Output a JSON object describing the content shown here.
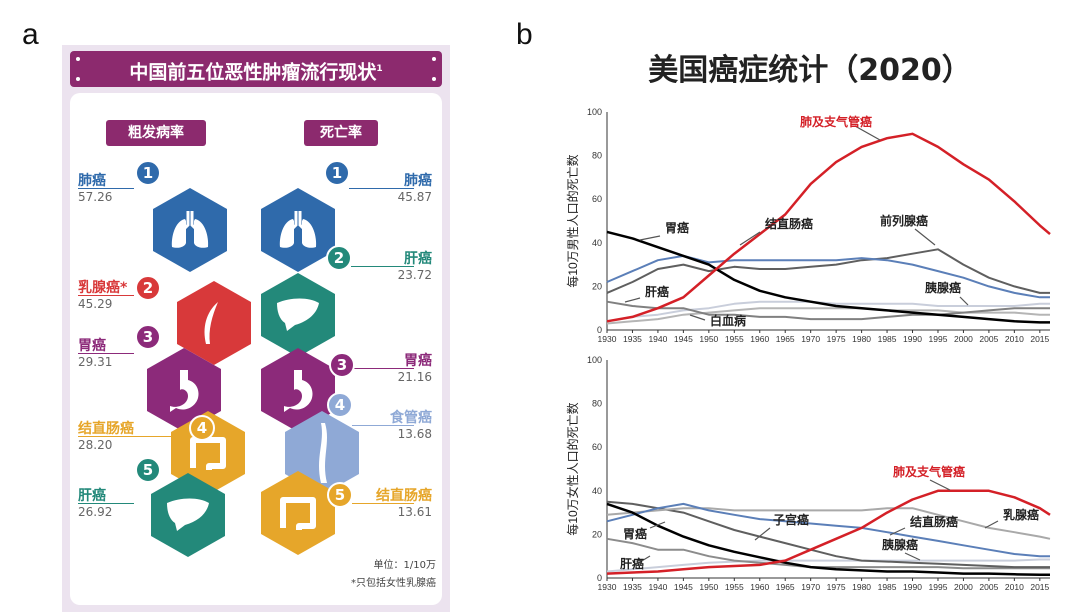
{
  "panel_a_letter": "a",
  "panel_b_letter": "b",
  "infographic": {
    "title": "中国前五位恶性肿瘤流行现状",
    "title_sup": "1",
    "incidence_header": "粗发病率",
    "mortality_header": "死亡率",
    "incidence": [
      {
        "rank": "1",
        "name": "肺癌",
        "value": "57.26",
        "color": "#2f6aab"
      },
      {
        "rank": "2",
        "name": "乳腺癌*",
        "value": "45.29",
        "color": "#d8393a"
      },
      {
        "rank": "3",
        "name": "胃癌",
        "value": "29.31",
        "color": "#8c2a7a"
      },
      {
        "rank": "4",
        "name": "结直肠癌",
        "value": "28.20",
        "color": "#e6a62a"
      },
      {
        "rank": "5",
        "name": "肝癌",
        "value": "26.92",
        "color": "#23897a"
      }
    ],
    "mortality": [
      {
        "rank": "1",
        "name": "肺癌",
        "value": "45.87",
        "color": "#2f6aab"
      },
      {
        "rank": "2",
        "name": "肝癌",
        "value": "23.72",
        "color": "#23897a"
      },
      {
        "rank": "3",
        "name": "胃癌",
        "value": "21.16",
        "color": "#8c2a7a"
      },
      {
        "rank": "4",
        "name": "食管癌",
        "value": "13.68",
        "color": "#8fa9d6"
      },
      {
        "rank": "5",
        "name": "结直肠癌",
        "value": "13.61",
        "color": "#e6a62a"
      }
    ],
    "unit": "单位：1/10万",
    "footnote": "*只包括女性乳腺癌"
  },
  "chart_title": "美国癌症统计（2020）",
  "chart_data": [
    {
      "type": "line",
      "title": "male",
      "ylabel": "每10万男性人口的死亡数",
      "ylim": [
        0,
        100
      ],
      "yticks": [
        "0",
        "20",
        "40",
        "60",
        "80",
        "100"
      ],
      "xticks": [
        "1930",
        "1935",
        "1940",
        "1945",
        "1950",
        "1955",
        "1960",
        "1965",
        "1970",
        "1975",
        "1980",
        "1985",
        "1990",
        "1995",
        "2000",
        "2005",
        "2010",
        "2015"
      ],
      "x": [
        1930,
        1935,
        1940,
        1945,
        1950,
        1955,
        1960,
        1965,
        1970,
        1975,
        1980,
        1985,
        1990,
        1995,
        2000,
        2005,
        2010,
        2015,
        2017
      ],
      "series": [
        {
          "name": "肺及支气管癌",
          "color": "#d42027",
          "width": 2.5,
          "values": [
            4,
            6,
            10,
            15,
            25,
            35,
            44,
            53,
            67,
            77,
            84,
            88,
            90,
            84,
            76,
            69,
            59,
            48,
            44
          ]
        },
        {
          "name": "胃癌",
          "color": "#000000",
          "width": 2.5,
          "values": [
            45,
            42,
            38,
            34,
            30,
            23,
            18,
            15,
            13,
            11,
            10,
            9,
            8,
            7,
            6,
            5,
            4,
            3.5,
            3.5
          ]
        },
        {
          "name": "结直肠癌",
          "color": "#5b7fb8",
          "width": 2,
          "values": [
            22,
            27,
            32,
            34,
            31,
            32,
            32,
            32,
            32,
            32,
            33,
            32,
            30,
            27,
            24,
            20,
            17,
            15,
            15
          ]
        },
        {
          "name": "前列腺癌",
          "color": "#5f5f5f",
          "width": 2,
          "values": [
            17,
            22,
            28,
            30,
            27,
            29,
            28,
            28,
            29,
            30,
            32,
            33,
            35,
            37,
            30,
            24,
            20,
            17,
            17
          ]
        },
        {
          "name": "肝癌",
          "color": "#808080",
          "width": 2,
          "values": [
            13,
            11,
            10,
            10,
            7,
            7,
            6,
            6,
            5,
            5,
            5,
            6,
            7,
            7,
            8,
            9,
            10,
            10,
            10
          ]
        },
        {
          "name": "胰腺癌",
          "color": "#c9cedb",
          "width": 2,
          "values": [
            4,
            6,
            7,
            9,
            10,
            12,
            13,
            13,
            13,
            12,
            12,
            12,
            12,
            11,
            11,
            11,
            11,
            12,
            12
          ]
        },
        {
          "name": "白血病",
          "color": "#b5b5b5",
          "width": 2,
          "values": [
            3,
            4,
            5,
            7,
            8,
            9,
            10,
            10,
            10,
            10,
            10,
            9,
            9,
            9,
            8,
            8,
            8,
            7,
            7
          ]
        }
      ]
    },
    {
      "type": "line",
      "title": "female",
      "ylabel": "每10万女性人口的死亡数",
      "ylim": [
        0,
        100
      ],
      "yticks": [
        "0",
        "20",
        "40",
        "60",
        "80",
        "100"
      ],
      "xticks": [
        "1930",
        "1935",
        "1940",
        "1945",
        "1950",
        "1955",
        "1960",
        "1965",
        "1970",
        "1975",
        "1980",
        "1985",
        "1990",
        "1995",
        "2000",
        "2005",
        "2010",
        "2015"
      ],
      "x": [
        1930,
        1935,
        1940,
        1945,
        1950,
        1955,
        1960,
        1965,
        1970,
        1975,
        1980,
        1985,
        1990,
        1995,
        2000,
        2005,
        2010,
        2015,
        2017
      ],
      "series": [
        {
          "name": "肺及支气管癌",
          "color": "#d42027",
          "width": 2.5,
          "values": [
            2,
            2.5,
            3,
            4,
            5,
            5.5,
            6,
            8,
            13,
            18,
            23,
            30,
            36,
            40,
            40,
            40,
            37,
            32,
            29
          ]
        },
        {
          "name": "胃癌",
          "color": "#000000",
          "width": 2.5,
          "values": [
            34,
            30,
            24,
            19,
            15,
            12,
            9.5,
            7,
            5,
            4,
            3.5,
            3,
            3,
            2.5,
            2,
            2,
            1.7,
            1.5,
            1.5
          ]
        },
        {
          "name": "结直肠癌",
          "color": "#5b7fb8",
          "width": 2,
          "values": [
            26,
            29,
            32,
            34,
            31,
            29,
            27,
            26,
            25,
            24,
            23,
            21,
            19,
            17,
            15,
            13,
            11,
            10,
            10
          ]
        },
        {
          "name": "乳腺癌",
          "color": "#a9a9a9",
          "width": 2,
          "values": [
            29,
            30,
            31,
            32,
            32,
            31,
            31,
            31,
            31,
            31,
            31,
            32,
            32,
            29,
            26,
            23,
            21,
            19,
            18
          ]
        },
        {
          "name": "子宫癌",
          "color": "#5f5f5f",
          "width": 2,
          "values": [
            35,
            34,
            32,
            30,
            26,
            22,
            19,
            16,
            13,
            10,
            8,
            7.5,
            7,
            6.5,
            6,
            5.5,
            5,
            5,
            5
          ]
        },
        {
          "name": "肝癌",
          "color": "#8c8c8c",
          "width": 2,
          "values": [
            18,
            16,
            13,
            13,
            10,
            8,
            7,
            6,
            5,
            5,
            5,
            5,
            5,
            5,
            4.5,
            4.5,
            4.5,
            4.5,
            4.5
          ]
        },
        {
          "name": "胰腺癌",
          "color": "#c9cedb",
          "width": 2,
          "values": [
            3,
            4,
            5,
            6,
            7,
            7.5,
            8,
            8,
            8,
            8,
            8,
            8,
            8,
            8,
            8,
            8,
            8,
            8.5,
            8.5
          ]
        }
      ]
    }
  ]
}
